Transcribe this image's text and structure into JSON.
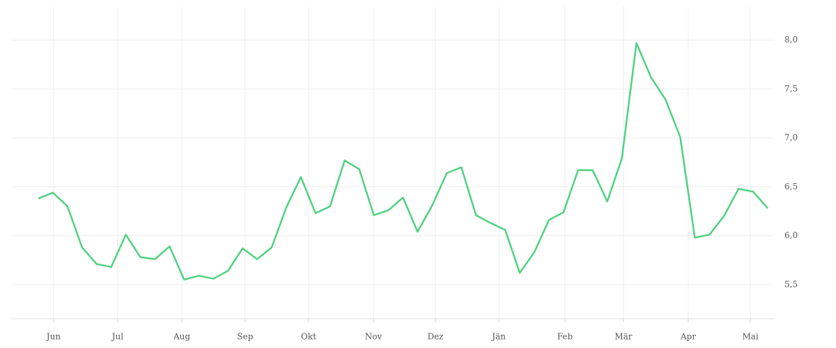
{
  "chart_data": {
    "type": "line",
    "x": [
      0,
      1,
      2,
      3,
      4,
      5,
      6,
      7,
      8,
      9,
      10,
      11,
      12,
      13,
      14,
      15,
      16,
      17,
      18,
      19,
      20,
      21,
      22,
      23,
      24,
      25,
      26,
      27,
      28,
      29,
      30,
      31,
      32,
      33,
      34,
      35,
      36,
      37,
      38,
      39,
      40,
      41,
      42,
      43,
      44,
      45,
      46,
      47,
      48,
      49,
      50
    ],
    "series": [
      {
        "color": "#4fd17f",
        "values": [
          6.38,
          6.44,
          6.3,
          5.88,
          5.71,
          5.68,
          6.01,
          5.78,
          5.76,
          5.89,
          5.55,
          5.59,
          5.56,
          5.64,
          5.87,
          5.76,
          5.88,
          6.29,
          6.6,
          6.23,
          6.3,
          6.77,
          6.68,
          6.21,
          6.26,
          6.39,
          6.04,
          6.31,
          6.64,
          6.7,
          6.21,
          6.13,
          6.06,
          5.62,
          5.83,
          6.16,
          6.24,
          6.67,
          6.67,
          6.35,
          6.79,
          7.97,
          7.62,
          7.39,
          7.01,
          5.98,
          6.01,
          6.2,
          6.48,
          6.45,
          6.28
        ]
      }
    ],
    "xlim": [
      -1.86,
      50.38
    ],
    "xticks": [
      {
        "value": 1.05,
        "label": "Jun"
      },
      {
        "value": 5.44,
        "label": "Jul"
      },
      {
        "value": 9.84,
        "label": "Aug"
      },
      {
        "value": 14.18,
        "label": "Sep"
      },
      {
        "value": 18.53,
        "label": "Okt"
      },
      {
        "value": 22.97,
        "label": "Nov"
      },
      {
        "value": 27.22,
        "label": "Dez"
      },
      {
        "value": 31.57,
        "label": "Jän"
      },
      {
        "value": 36.1,
        "label": "Feb"
      },
      {
        "value": 40.11,
        "label": "Mär"
      },
      {
        "value": 44.55,
        "label": "Apr"
      },
      {
        "value": 48.81,
        "label": "Mai"
      }
    ],
    "ylim": [
      5.15,
      8.34
    ],
    "yticks": [
      {
        "value": 5.5,
        "label": "5,5"
      },
      {
        "value": 6,
        "label": "6,0"
      },
      {
        "value": 6.5,
        "label": "6,5"
      },
      {
        "value": 7,
        "label": "7,0"
      },
      {
        "value": 7.5,
        "label": "7,5"
      },
      {
        "value": 8,
        "label": "8,0"
      }
    ],
    "y_axis_side": "right",
    "grid": true
  }
}
